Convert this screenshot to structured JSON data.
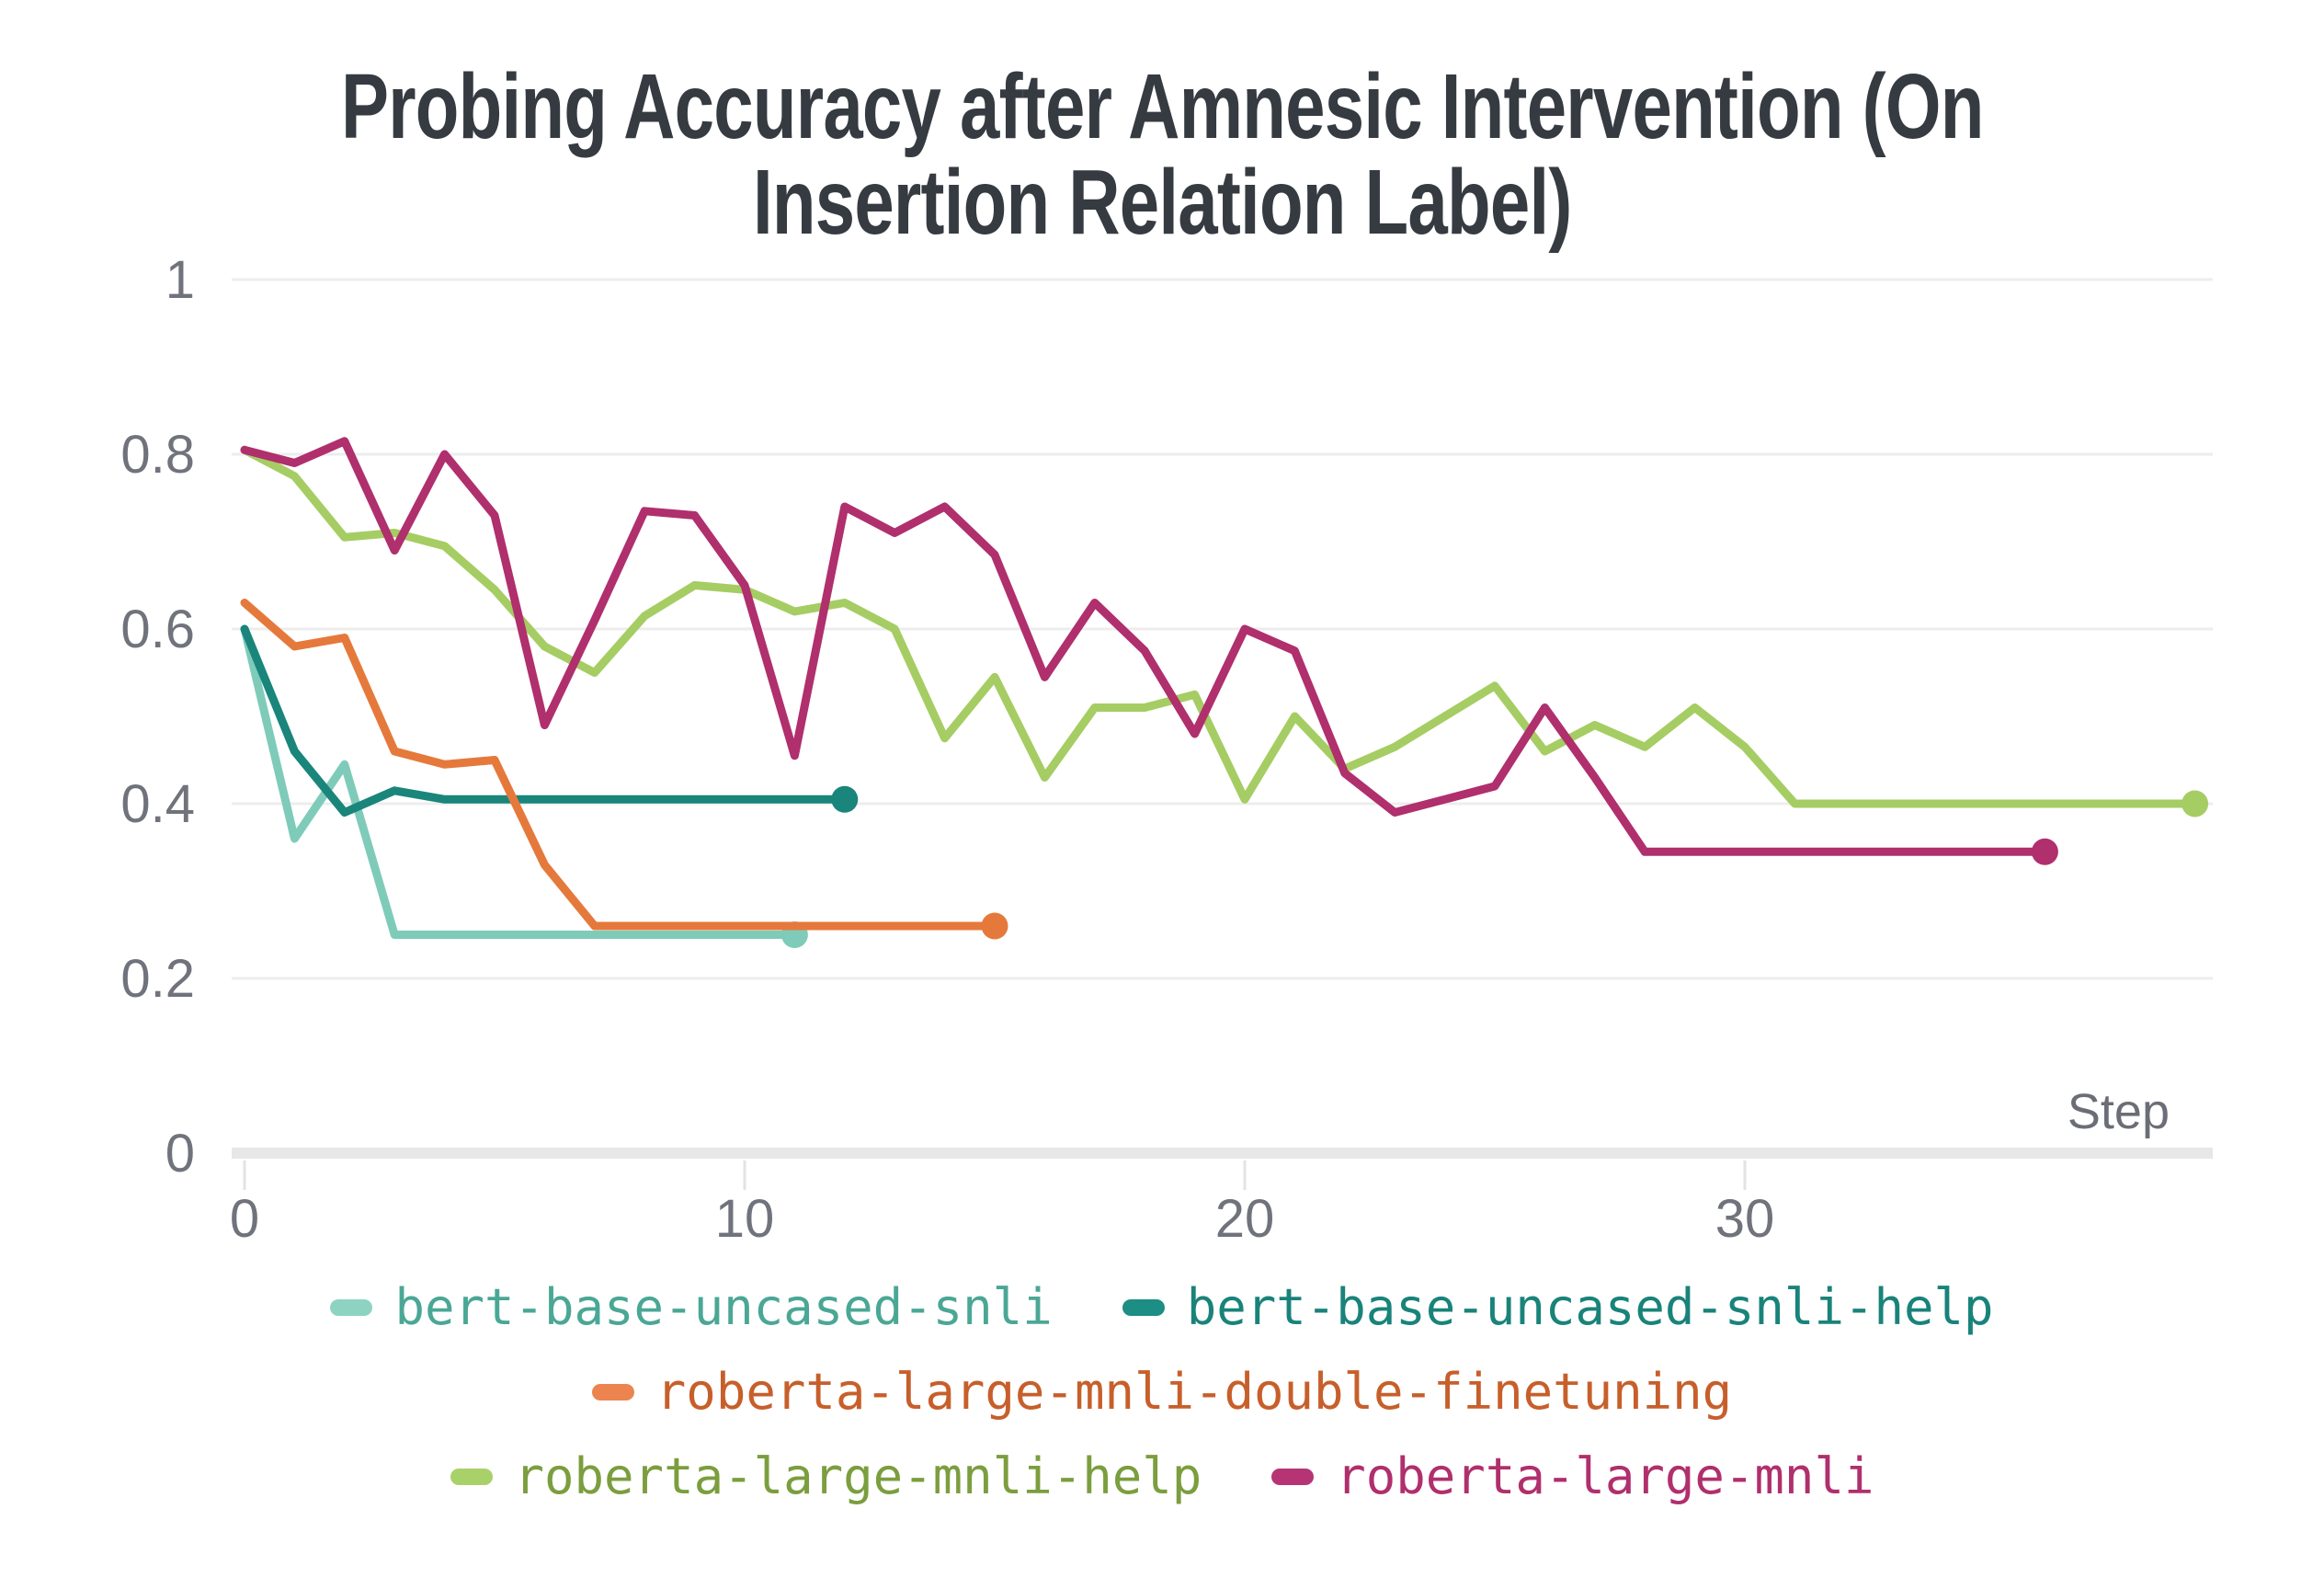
{
  "title": "Probing Accuracy after Amnesic Intervention (On Insertion Relation Label)",
  "title_lines": [
    "Probing Accuracy after Amnesic Intervention (On",
    "Insertion Relation Label)"
  ],
  "x_axis": {
    "label": "Step",
    "ticks": [
      "0",
      "10",
      "20",
      "30"
    ],
    "tick_values": [
      0,
      10,
      20,
      30
    ]
  },
  "y_axis": {
    "ticks": [
      "1",
      "0.8",
      "0.6",
      "0.4",
      "0.2",
      "0"
    ],
    "tick_values": [
      1,
      0.8,
      0.6,
      0.4,
      0.2,
      0
    ]
  },
  "colors": {
    "title": "#363B42",
    "tick_label": "#70737B",
    "axis_label": "#6B6E76",
    "gridline": "#EDEDED",
    "axis_line": "#E7E7E7",
    "tick_mark": "#E3E3E3",
    "background": "#FFFFFF"
  },
  "chart_data": {
    "type": "line",
    "title": "Probing Accuracy after Amnesic Intervention (On Insertion Relation Label)",
    "xlabel": "Step",
    "ylabel": "",
    "xlim": [
      0,
      39.4
    ],
    "ylim": [
      0,
      1
    ],
    "grid": "horizontal-only",
    "legend_position": "bottom",
    "series": [
      {
        "name": "bert-base-uncased-snli",
        "line_color": "#7FCBBA",
        "swatch_color": "#8ED3C2",
        "label_color": "#4BA795",
        "x_start": 0,
        "end_marker": true,
        "values": [
          0.6,
          0.36,
          0.445,
          0.25,
          0.25,
          0.25,
          0.25,
          0.25,
          0.25,
          0.25,
          0.25,
          0.25
        ]
      },
      {
        "name": "bert-base-uncased-snli-help",
        "line_color": "#1A857B",
        "swatch_color": "#1C8E83",
        "label_color": "#19837A",
        "x_start": 0,
        "end_marker": true,
        "values": [
          0.6,
          0.46,
          0.39,
          0.415,
          0.405,
          0.405,
          0.405,
          0.405,
          0.405,
          0.405,
          0.405,
          0.405,
          0.405
        ]
      },
      {
        "name": "roberta-large-mnli-double-finetuning",
        "line_color": "#E5793C",
        "swatch_color": "#EC8450",
        "label_color": "#C75F2B",
        "x_start": 0,
        "end_marker": true,
        "values": [
          0.63,
          0.58,
          0.59,
          0.46,
          0.445,
          0.45,
          0.33,
          0.26,
          0.26,
          0.26,
          0.26,
          0.26,
          0.26,
          0.26,
          0.26,
          0.26
        ]
      },
      {
        "name": "roberta-large-mnli-help",
        "line_color": "#A5CD63",
        "swatch_color": "#A9D169",
        "label_color": "#7B9E3E",
        "x_start": 0,
        "end_marker": true,
        "values": [
          0.805,
          0.775,
          0.705,
          0.71,
          0.695,
          0.645,
          0.58,
          0.55,
          0.615,
          0.65,
          0.645,
          0.62,
          0.63,
          0.6,
          0.475,
          0.545,
          0.43,
          0.51,
          0.51,
          0.525,
          0.405,
          0.5,
          0.44,
          0.465,
          0.5,
          0.535,
          0.46,
          0.49,
          0.465,
          0.51,
          0.465,
          0.4,
          0.4,
          0.4,
          0.4,
          0.4,
          0.4,
          0.4,
          0.4,
          0.4
        ]
      },
      {
        "name": "roberta-large-mnli",
        "line_color": "#B02F6D",
        "swatch_color": "#B63474",
        "label_color": "#B02F6D",
        "x_start": 0,
        "end_marker": true,
        "values": [
          0.805,
          0.79,
          0.815,
          0.69,
          0.8,
          0.73,
          0.49,
          0.61,
          0.735,
          0.73,
          0.65,
          0.455,
          0.74,
          0.71,
          0.74,
          0.685,
          0.545,
          0.63,
          0.575,
          0.48,
          0.6,
          0.575,
          0.435,
          0.39,
          0.405,
          0.42,
          0.51,
          0.43,
          0.345,
          0.345,
          0.345,
          0.345,
          0.345,
          0.345,
          0.345,
          0.345,
          0.345
        ]
      }
    ]
  },
  "legend_rows": [
    [
      "bert-base-uncased-snli",
      "bert-base-uncased-snli-help"
    ],
    [
      "roberta-large-mnli-double-finetuning"
    ],
    [
      "roberta-large-mnli-help",
      "roberta-large-mnli"
    ]
  ]
}
